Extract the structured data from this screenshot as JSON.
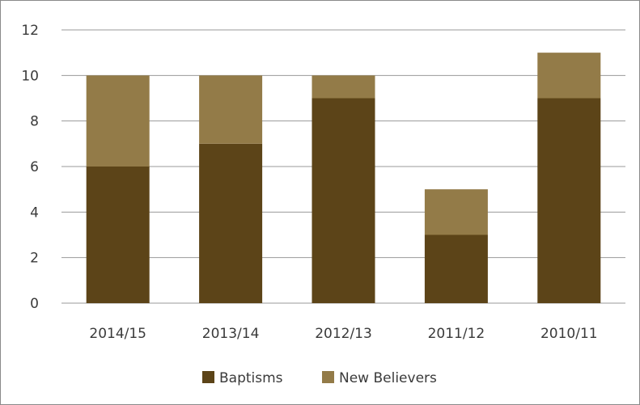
{
  "chart_data": {
    "type": "bar",
    "stacked": true,
    "categories": [
      "2014/15",
      "2013/14",
      "2012/13",
      "2011/12",
      "2010/11"
    ],
    "series": [
      {
        "name": "Baptisms",
        "values": [
          6,
          7,
          9,
          3,
          9
        ],
        "color": "#5c4418"
      },
      {
        "name": "New Believers",
        "values": [
          4,
          3,
          1,
          2,
          2
        ],
        "color": "#937b48"
      }
    ],
    "ylim": [
      0,
      12
    ],
    "yticks": [
      0,
      2,
      4,
      6,
      8,
      10,
      12
    ],
    "grid": true,
    "legend_position": "bottom",
    "gridline_color": "#9a9a9a"
  }
}
